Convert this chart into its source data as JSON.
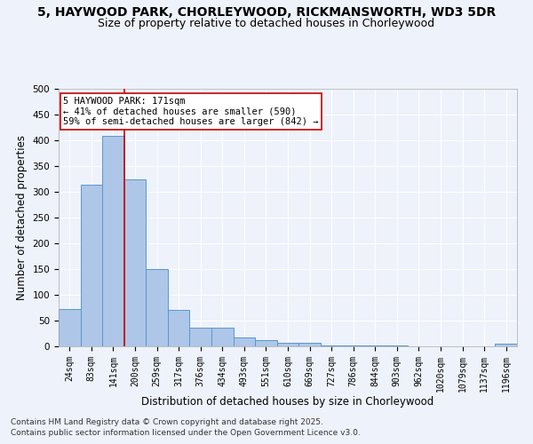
{
  "title_line1": "5, HAYWOOD PARK, CHORLEYWOOD, RICKMANSWORTH, WD3 5DR",
  "title_line2": "Size of property relative to detached houses in Chorleywood",
  "xlabel": "Distribution of detached houses by size in Chorleywood",
  "ylabel": "Number of detached properties",
  "bar_labels": [
    "24sqm",
    "83sqm",
    "141sqm",
    "200sqm",
    "259sqm",
    "317sqm",
    "376sqm",
    "434sqm",
    "493sqm",
    "551sqm",
    "610sqm",
    "669sqm",
    "727sqm",
    "786sqm",
    "844sqm",
    "903sqm",
    "962sqm",
    "1020sqm",
    "1079sqm",
    "1137sqm",
    "1196sqm"
  ],
  "bar_values": [
    72,
    313,
    408,
    325,
    150,
    70,
    37,
    36,
    18,
    12,
    7,
    7,
    2,
    2,
    2,
    2,
    0,
    0,
    0,
    0,
    5
  ],
  "bar_color": "#aec6e8",
  "bar_edgecolor": "#5599cc",
  "vline_x": 2.5,
  "vline_color": "#cc0000",
  "annotation_text": "5 HAYWOOD PARK: 171sqm\n← 41% of detached houses are smaller (590)\n59% of semi-detached houses are larger (842) →",
  "annotation_box_color": "#ffffff",
  "annotation_box_edgecolor": "#cc0000",
  "ylim": [
    0,
    500
  ],
  "yticks": [
    0,
    50,
    100,
    150,
    200,
    250,
    300,
    350,
    400,
    450,
    500
  ],
  "background_color": "#eef2fb",
  "grid_color": "#ffffff",
  "footer_line1": "Contains HM Land Registry data © Crown copyright and database right 2025.",
  "footer_line2": "Contains public sector information licensed under the Open Government Licence v3.0.",
  "title_fontsize": 10,
  "subtitle_fontsize": 9,
  "axis_label_fontsize": 8.5,
  "tick_fontsize": 7,
  "annotation_fontsize": 7.5,
  "footer_fontsize": 6.5
}
